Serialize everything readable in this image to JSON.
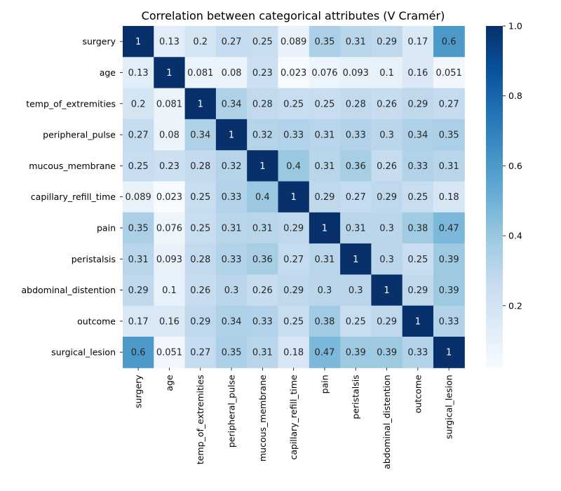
{
  "chart_data": {
    "type": "heatmap",
    "title": "Correlation between categorical attributes (V Cramér)",
    "categories": [
      "surgery",
      "age",
      "temp_of_extremities",
      "peripheral_pulse",
      "mucous_membrane",
      "capillary_refill_time",
      "pain",
      "peristalsis",
      "abdominal_distention",
      "outcome",
      "surgical_lesion"
    ],
    "matrix": [
      [
        1,
        0.13,
        0.2,
        0.27,
        0.25,
        0.089,
        0.35,
        0.31,
        0.29,
        0.17,
        0.6
      ],
      [
        0.13,
        1,
        0.081,
        0.08,
        0.23,
        0.023,
        0.076,
        0.093,
        0.1,
        0.16,
        0.051
      ],
      [
        0.2,
        0.081,
        1,
        0.34,
        0.28,
        0.25,
        0.25,
        0.28,
        0.26,
        0.29,
        0.27
      ],
      [
        0.27,
        0.08,
        0.34,
        1,
        0.32,
        0.33,
        0.31,
        0.33,
        0.3,
        0.34,
        0.35
      ],
      [
        0.25,
        0.23,
        0.28,
        0.32,
        1,
        0.4,
        0.31,
        0.36,
        0.26,
        0.33,
        0.31
      ],
      [
        0.089,
        0.023,
        0.25,
        0.33,
        0.4,
        1,
        0.29,
        0.27,
        0.29,
        0.25,
        0.18
      ],
      [
        0.35,
        0.076,
        0.25,
        0.31,
        0.31,
        0.29,
        1,
        0.31,
        0.3,
        0.38,
        0.47
      ],
      [
        0.31,
        0.093,
        0.28,
        0.33,
        0.36,
        0.27,
        0.31,
        1,
        0.3,
        0.25,
        0.39
      ],
      [
        0.29,
        0.1,
        0.26,
        0.3,
        0.26,
        0.29,
        0.3,
        0.3,
        1,
        0.29,
        0.39
      ],
      [
        0.17,
        0.16,
        0.29,
        0.34,
        0.33,
        0.25,
        0.38,
        0.25,
        0.29,
        1,
        0.33
      ],
      [
        0.6,
        0.051,
        0.27,
        0.35,
        0.31,
        0.18,
        0.47,
        0.39,
        0.39,
        0.33,
        1
      ]
    ],
    "colorbar": {
      "range": [
        0.023,
        1.0
      ],
      "ticks": [
        "0.2",
        "0.4",
        "0.6",
        "0.8",
        "1.0"
      ],
      "tick_values": [
        0.2,
        0.4,
        0.6,
        0.8,
        1.0
      ]
    },
    "colormap": "Blues",
    "colors": [
      "#f7fbff",
      "#deebf7",
      "#c6dbef",
      "#9ecae1",
      "#6baed6",
      "#4292c6",
      "#2171b5",
      "#08519c",
      "#08306b"
    ],
    "grid": false,
    "legend": "colorbar-right"
  }
}
